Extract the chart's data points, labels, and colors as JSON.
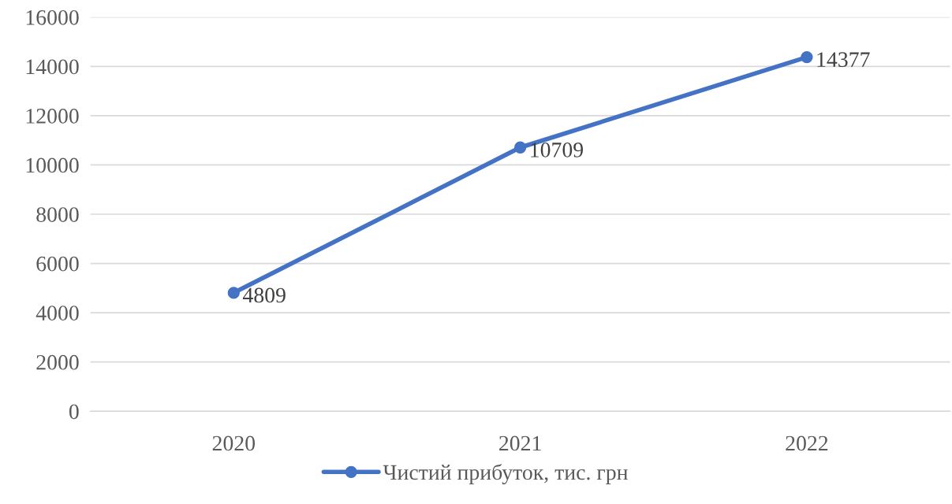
{
  "chart_data": {
    "type": "line",
    "categories": [
      "2020",
      "2021",
      "2022"
    ],
    "series": [
      {
        "name": "Чистий прибуток, тис. грн",
        "color": "#4472c4",
        "values": [
          4809,
          10709,
          14377
        ]
      }
    ],
    "ylim": [
      0,
      16000
    ],
    "yticks": [
      0,
      2000,
      4000,
      6000,
      8000,
      10000,
      12000,
      14000,
      16000
    ],
    "grid": "y",
    "legend": "bottom",
    "marker": "circle",
    "line_style": "solid",
    "data_labels": true
  }
}
